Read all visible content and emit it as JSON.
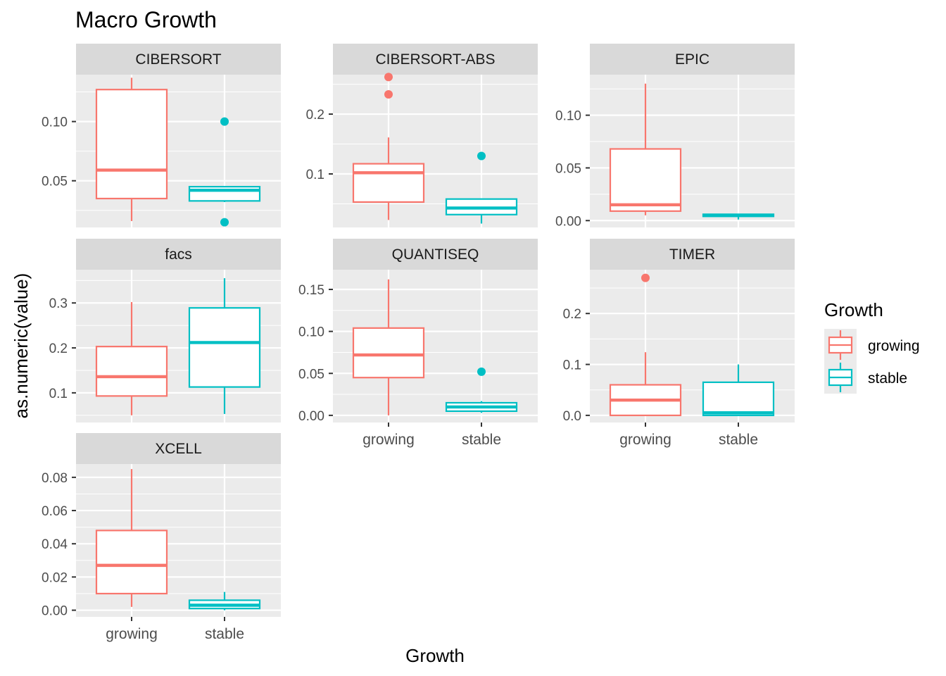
{
  "chart_data": {
    "type": "boxplot",
    "title": "Macro Growth",
    "xlabel": "Growth",
    "ylabel": "as.numeric(value)",
    "categories": [
      "growing",
      "stable"
    ],
    "legend": {
      "title": "Growth",
      "position": "right",
      "entries": [
        {
          "label": "growing",
          "color": "#F8766D"
        },
        {
          "label": "stable",
          "color": "#00BFC4"
        }
      ]
    },
    "colors": {
      "growing": "#F8766D",
      "stable": "#00BFC4",
      "panel_bg": "#EBEBEB",
      "strip_bg": "#D9D9D9",
      "grid": "#FFFFFF"
    },
    "grid": true,
    "facets": [
      {
        "name": "CIBERSORT",
        "ylim": [
          0.0106,
          0.1396
        ],
        "yticks": [
          0.05,
          0.1
        ],
        "ytick_labels": [
          "0.05",
          "0.10"
        ],
        "boxes": {
          "growing": {
            "min": 0.016,
            "q1": 0.035,
            "median": 0.059,
            "q3": 0.127,
            "max": 0.137,
            "outliers": []
          },
          "stable": {
            "min": 0.032,
            "q1": 0.033,
            "median": 0.042,
            "q3": 0.045,
            "max": 0.045,
            "outliers": [
              0.1,
              0.015
            ]
          }
        }
      },
      {
        "name": "CIBERSORT-ABS",
        "ylim": [
          0.0105,
          0.266
        ],
        "yticks": [
          0.1,
          0.2
        ],
        "ytick_labels": [
          "0.1",
          "0.2"
        ],
        "boxes": {
          "growing": {
            "min": 0.023,
            "q1": 0.053,
            "median": 0.102,
            "q3": 0.117,
            "max": 0.161,
            "outliers": [
              0.262,
              0.233
            ]
          },
          "stable": {
            "min": 0.017,
            "q1": 0.032,
            "median": 0.043,
            "q3": 0.058,
            "max": 0.058,
            "outliers": [
              0.13
            ]
          }
        }
      },
      {
        "name": "EPIC",
        "ylim": [
          -0.0065,
          0.1385
        ],
        "yticks": [
          0.0,
          0.05,
          0.1
        ],
        "ytick_labels": [
          "0.00",
          "0.05",
          "0.10"
        ],
        "boxes": {
          "growing": {
            "min": 0.005,
            "q1": 0.009,
            "median": 0.015,
            "q3": 0.068,
            "max": 0.13,
            "outliers": []
          },
          "stable": {
            "min": 0.001,
            "q1": 0.004,
            "median": 0.005,
            "q3": 0.006,
            "max": 0.006,
            "outliers": []
          }
        }
      },
      {
        "name": "facs",
        "ylim": [
          0.034,
          0.374
        ],
        "yticks": [
          0.1,
          0.2,
          0.3
        ],
        "ytick_labels": [
          "0.1",
          "0.2",
          "0.3"
        ],
        "boxes": {
          "growing": {
            "min": 0.05,
            "q1": 0.093,
            "median": 0.136,
            "q3": 0.203,
            "max": 0.302,
            "outliers": []
          },
          "stable": {
            "min": 0.053,
            "q1": 0.113,
            "median": 0.212,
            "q3": 0.289,
            "max": 0.355,
            "outliers": []
          }
        }
      },
      {
        "name": "QUANTISEQ",
        "ylim": [
          -0.0085,
          0.1735
        ],
        "yticks": [
          0.0,
          0.05,
          0.1,
          0.15
        ],
        "ytick_labels": [
          "0.00",
          "0.05",
          "0.10",
          "0.15"
        ],
        "boxes": {
          "growing": {
            "min": 0.0,
            "q1": 0.045,
            "median": 0.072,
            "q3": 0.104,
            "max": 0.162,
            "outliers": []
          },
          "stable": {
            "min": 0.003,
            "q1": 0.005,
            "median": 0.01,
            "q3": 0.015,
            "max": 0.017,
            "outliers": [
              0.052
            ]
          }
        }
      },
      {
        "name": "TIMER",
        "ylim": [
          -0.014,
          0.286
        ],
        "yticks": [
          0.0,
          0.1,
          0.2
        ],
        "ytick_labels": [
          "0.0",
          "0.1",
          "0.2"
        ],
        "boxes": {
          "growing": {
            "min": 0.0,
            "q1": 0.0,
            "median": 0.03,
            "q3": 0.06,
            "max": 0.124,
            "outliers": [
              0.27
            ]
          },
          "stable": {
            "min": 0.0,
            "q1": 0.0,
            "median": 0.005,
            "q3": 0.065,
            "max": 0.1,
            "outliers": []
          }
        }
      },
      {
        "name": "XCELL",
        "ylim": [
          -0.004,
          0.088
        ],
        "yticks": [
          0.0,
          0.02,
          0.04,
          0.06,
          0.08
        ],
        "ytick_labels": [
          "0.00",
          "0.02",
          "0.04",
          "0.06",
          "0.08"
        ],
        "boxes": {
          "growing": {
            "min": 0.002,
            "q1": 0.01,
            "median": 0.027,
            "q3": 0.048,
            "max": 0.085,
            "outliers": []
          },
          "stable": {
            "min": 0.0,
            "q1": 0.001,
            "median": 0.003,
            "q3": 0.006,
            "max": 0.011,
            "outliers": []
          }
        }
      }
    ]
  }
}
